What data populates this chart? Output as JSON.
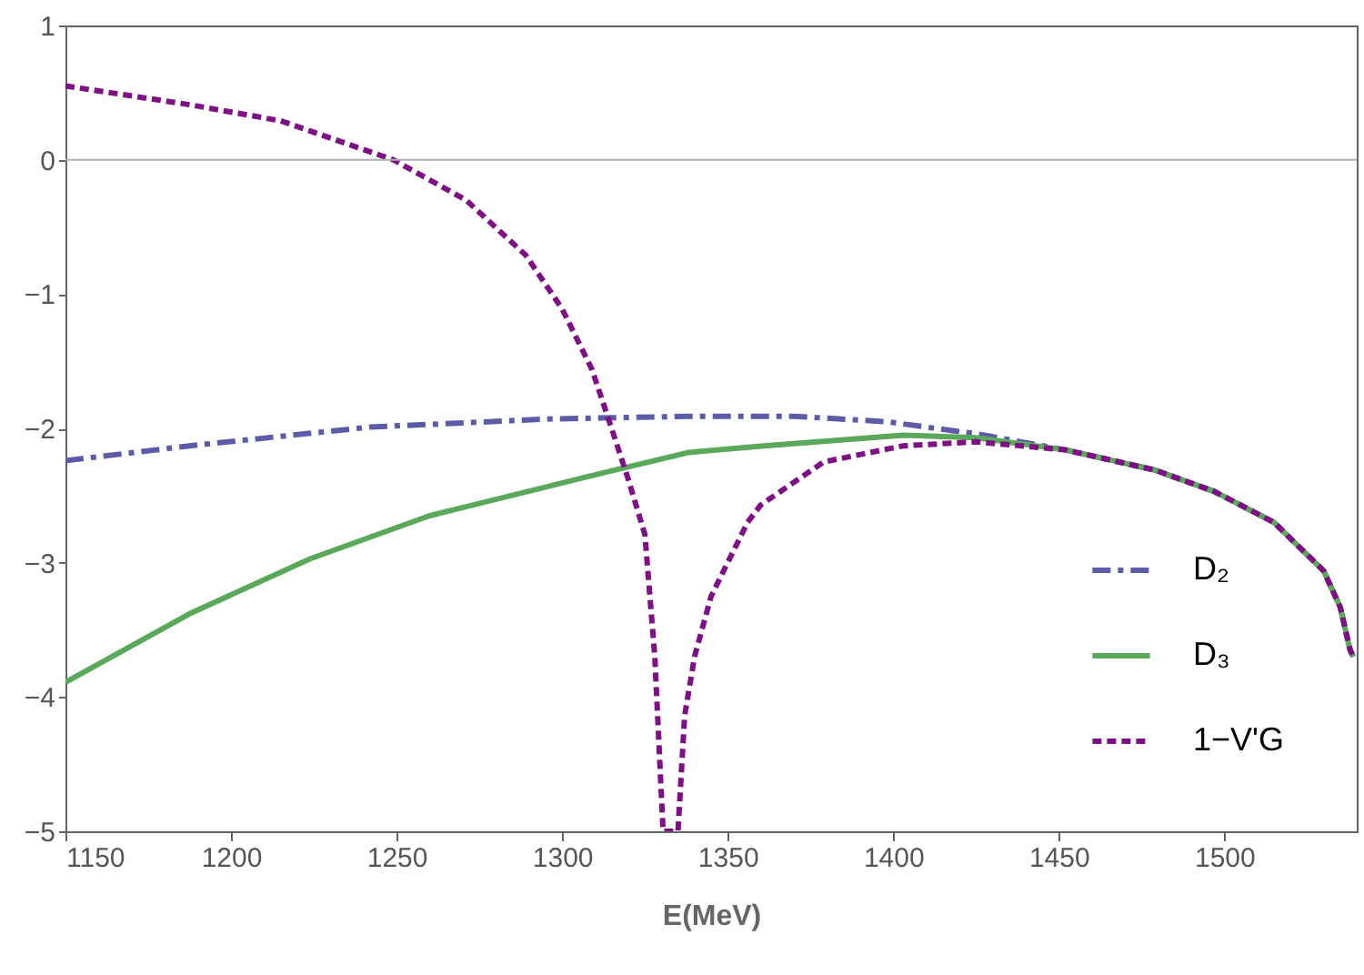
{
  "chart_data": {
    "type": "line",
    "xlabel": "E(MeV)",
    "xlim": [
      1150,
      1540
    ],
    "xticks": [
      1150,
      1200,
      1250,
      1300,
      1350,
      1400,
      1450,
      1500
    ],
    "ylim": [
      -5,
      1
    ],
    "yticks": [
      -5,
      -4,
      -3,
      -2,
      -1,
      0,
      1
    ],
    "grid": false,
    "legend": "bottom right",
    "ref_lines": [
      {
        "axis": "y",
        "value": 0,
        "color": "#b0b0b0"
      }
    ],
    "series": [
      {
        "name": "D₂",
        "color": "#5b5ba8",
        "line_style": "dashed",
        "x": [
          1150,
          1187.5,
          1242,
          1296,
          1338,
          1370,
          1398,
          1425,
          1452,
          1479,
          1497,
          1515,
          1530,
          1535,
          1538,
          1539
        ],
        "values": [
          -2.24,
          -2.13,
          -1.99,
          -1.93,
          -1.91,
          -1.91,
          -1.95,
          -2.04,
          -2.16,
          -2.31,
          -2.47,
          -2.7,
          -3.06,
          -3.33,
          -3.65,
          -3.7
        ]
      },
      {
        "name": "D₃",
        "color": "#5aa85a",
        "line_style": "solid",
        "x": [
          1150,
          1187.5,
          1224,
          1260,
          1311,
          1338,
          1361,
          1403,
          1425,
          1452,
          1479,
          1497,
          1515,
          1530,
          1535,
          1538,
          1539
        ],
        "values": [
          -3.89,
          -3.38,
          -2.97,
          -2.65,
          -2.34,
          -2.18,
          -2.13,
          -2.05,
          -2.07,
          -2.16,
          -2.31,
          -2.47,
          -2.7,
          -3.06,
          -3.33,
          -3.65,
          -3.7
        ]
      },
      {
        "name": "1−V'G",
        "color": "#7f0f84",
        "line_style": "dotted",
        "x": [
          1150,
          1187.5,
          1215,
          1249,
          1271,
          1289,
          1300,
          1309,
          1314,
          1320,
          1325,
          1328,
          1330.5,
          1335,
          1337,
          1340,
          1345,
          1356,
          1360,
          1379,
          1403,
          1425,
          1452,
          1479,
          1497,
          1515,
          1530,
          1535,
          1538,
          1539
        ],
        "values": [
          0.55,
          0.41,
          0.29,
          0,
          -0.3,
          -0.71,
          -1.11,
          -1.56,
          -1.93,
          -2.38,
          -2.79,
          -3.7,
          -5,
          -5,
          -4.14,
          -3.7,
          -3.25,
          -2.7,
          -2.57,
          -2.25,
          -2.13,
          -2.1,
          -2.16,
          -2.31,
          -2.47,
          -2.7,
          -3.06,
          -3.33,
          -3.65,
          -3.7
        ]
      }
    ]
  }
}
